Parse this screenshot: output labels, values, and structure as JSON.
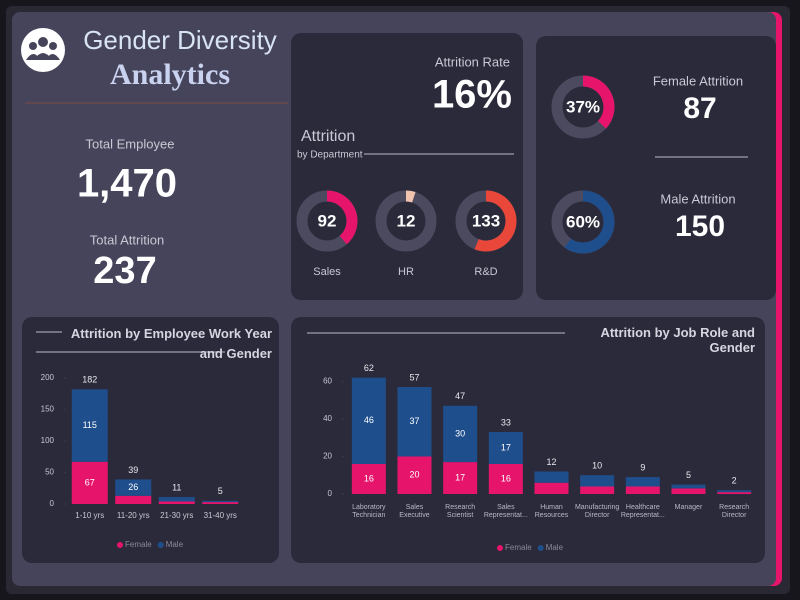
{
  "header": {
    "title": "Gender Diversity",
    "subtitle": "Analytics"
  },
  "kpis": {
    "total_employee": {
      "label": "Total Employee",
      "value": 1470,
      "value_label": "1,470"
    },
    "total_attrition": {
      "label": "Total Attrition",
      "value": 237
    },
    "attrition_rate": {
      "label": "Attrition Rate",
      "value_label": "16%"
    }
  },
  "chart_data": [
    {
      "type": "donut",
      "title": "Attrition",
      "subtitle": "by Department",
      "categories": [
        "Sales",
        "HR",
        "R&D"
      ],
      "values": [
        92,
        12,
        133
      ],
      "colors": [
        "#e6156b",
        "#f2c4b0",
        "#e8473a"
      ]
    },
    {
      "type": "donut",
      "categories": [
        "Female Attrition",
        "Male Attrition"
      ],
      "values": [
        37,
        60
      ],
      "value_labels": [
        "37%",
        "60%"
      ],
      "counts": [
        87,
        150
      ],
      "ylim": [
        0,
        100
      ],
      "colors": [
        "#e6156b",
        "#1f4e8c"
      ]
    },
    {
      "type": "stacked-bar",
      "title": "Attrition by Employee Work Year and Gender",
      "categories": [
        "1-10 yrs",
        "11-20 yrs",
        "21-30 yrs",
        "31-40 yrs"
      ],
      "series": [
        {
          "name": "Female",
          "color": "#e6156b",
          "values": [
            67,
            13,
            4,
            3
          ]
        },
        {
          "name": "Male",
          "color": "#1f4e8c",
          "values": [
            115,
            26,
            7,
            2
          ]
        }
      ],
      "totals": [
        182,
        39,
        11,
        5
      ],
      "ylim": [
        0,
        200
      ],
      "yticks": [
        0,
        50,
        100,
        150,
        200
      ]
    },
    {
      "type": "stacked-bar",
      "title": "Attrition by Job Role and Gender",
      "categories": [
        "Laboratory Technician",
        "Sales Executive",
        "Research Scientist",
        "Sales Representat...",
        "Human Resources",
        "Manufacturing Director",
        "Healthcare Representat...",
        "Manager",
        "Research Director"
      ],
      "series": [
        {
          "name": "Female",
          "color": "#e6156b",
          "values": [
            16,
            20,
            17,
            16,
            6,
            4,
            4,
            3,
            1
          ]
        },
        {
          "name": "Male",
          "color": "#1f4e8c",
          "values": [
            46,
            37,
            30,
            17,
            6,
            6,
            5,
            2,
            1
          ]
        }
      ],
      "totals": [
        62,
        57,
        47,
        33,
        12,
        10,
        9,
        5,
        2
      ],
      "ylim": [
        0,
        65
      ],
      "yticks": [
        0,
        20,
        40,
        60
      ]
    }
  ]
}
